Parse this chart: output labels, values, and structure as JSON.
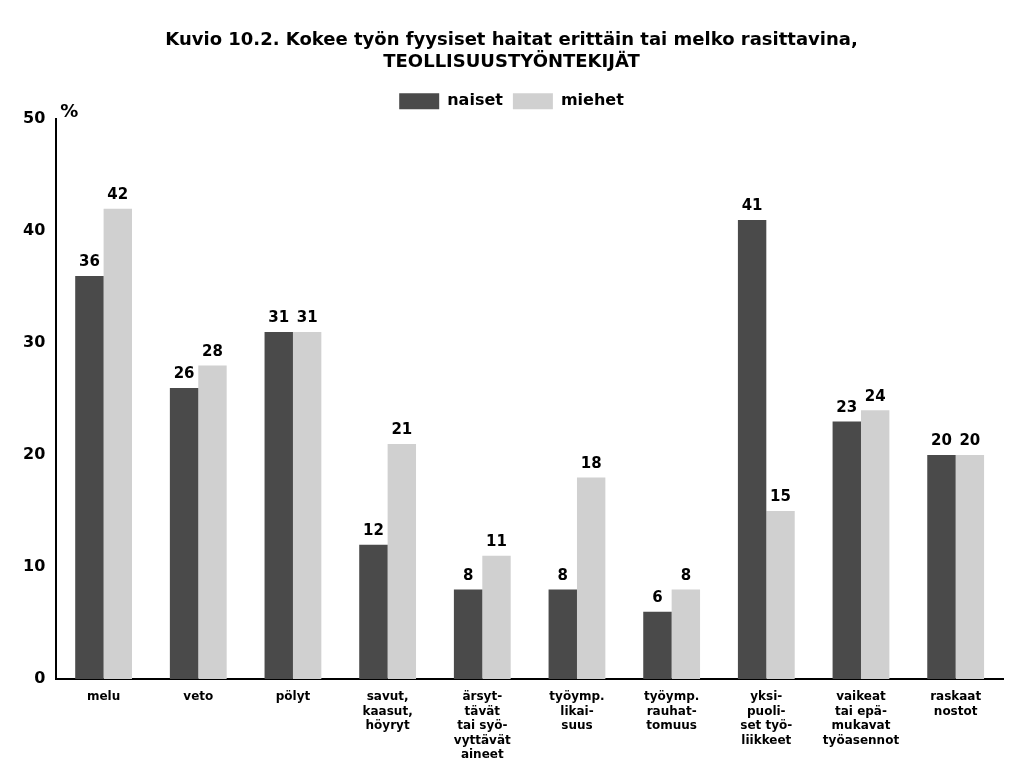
{
  "chart_data": {
    "type": "bar",
    "title": "Kuvio 10.2. Kokee työn fyysiset haitat erittäin tai melko rasittavina,\nTEOLLISUUSTYÖNTEKIJÄT",
    "ylabel": "%",
    "categories": [
      "melu",
      "veto",
      "pölyt",
      "savut,\nkaasut,\nhöyryt",
      "ärsyt-\ntävät\ntai syö-\nvyttävät\naineet",
      "työymp.\nlikai-\nsuus",
      "työymp.\nrauhat-\ntomuus",
      "yksi-\npuoli-\nset työ-\nliikkeet",
      "vaikeat\ntai epä-\nmukavat\ntyöasennot",
      "raskaat\nnostot"
    ],
    "series": [
      {
        "name": "naiset",
        "color": "#4a4a4a",
        "values": [
          36,
          26,
          31,
          12,
          8,
          8,
          6,
          41,
          23,
          20
        ]
      },
      {
        "name": "miehet",
        "color": "#d0d0d0",
        "values": [
          42,
          28,
          31,
          21,
          11,
          18,
          8,
          15,
          24,
          20
        ]
      }
    ],
    "ylim": [
      0,
      50
    ],
    "yticks": [
      0,
      10,
      20,
      30,
      40,
      50
    ],
    "grid": false,
    "legend": "top",
    "data_labels": true
  }
}
